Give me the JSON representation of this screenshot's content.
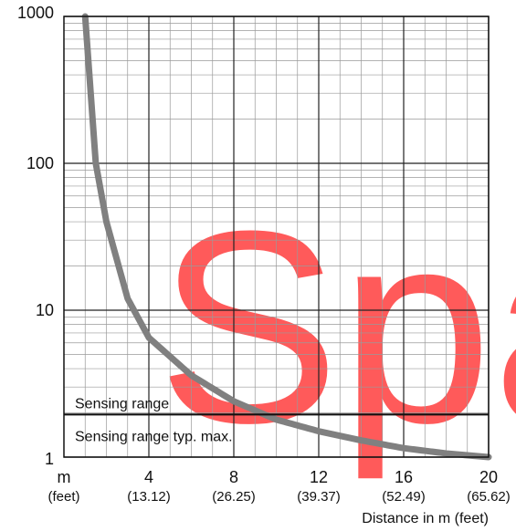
{
  "chart_data": {
    "type": "line",
    "title": "",
    "xlabel": "Distance in m (feet)",
    "ylabel": "",
    "x_unit_label": "m",
    "x_unit_sublabel": "(feet)",
    "xlim": [
      0,
      20
    ],
    "ylim": [
      1,
      1000
    ],
    "y_scale": "log",
    "grid": true,
    "x_ticks": [
      {
        "value": 4,
        "label": "4",
        "sublabel": "(13.12)"
      },
      {
        "value": 8,
        "label": "8",
        "sublabel": "(26.25)"
      },
      {
        "value": 12,
        "label": "12",
        "sublabel": "(39.37)"
      },
      {
        "value": 16,
        "label": "16",
        "sublabel": "(52.49)"
      },
      {
        "value": 20,
        "label": "20",
        "sublabel": "(65.62)"
      }
    ],
    "y_ticks": [
      {
        "value": 1,
        "label": "1"
      },
      {
        "value": 10,
        "label": "10"
      },
      {
        "value": 100,
        "label": "100"
      },
      {
        "value": 1000,
        "label": "1000"
      }
    ],
    "series": [
      {
        "color": "#808080",
        "x": [
          1,
          1.5,
          2,
          3,
          4,
          6,
          8,
          10,
          12,
          14,
          16,
          18,
          20
        ],
        "y": [
          1000,
          100,
          40,
          12,
          6.5,
          3.6,
          2.4,
          1.8,
          1.5,
          1.3,
          1.15,
          1.06,
          1.0
        ]
      }
    ],
    "reference_lines": [
      {
        "y": 1.95,
        "label": "Sensing range",
        "color": "#111111"
      }
    ],
    "band_labels": [
      {
        "text": "Sensing range typ. max."
      }
    ]
  },
  "watermark": {
    "text": "Spa",
    "color": "#ff5a5a"
  }
}
